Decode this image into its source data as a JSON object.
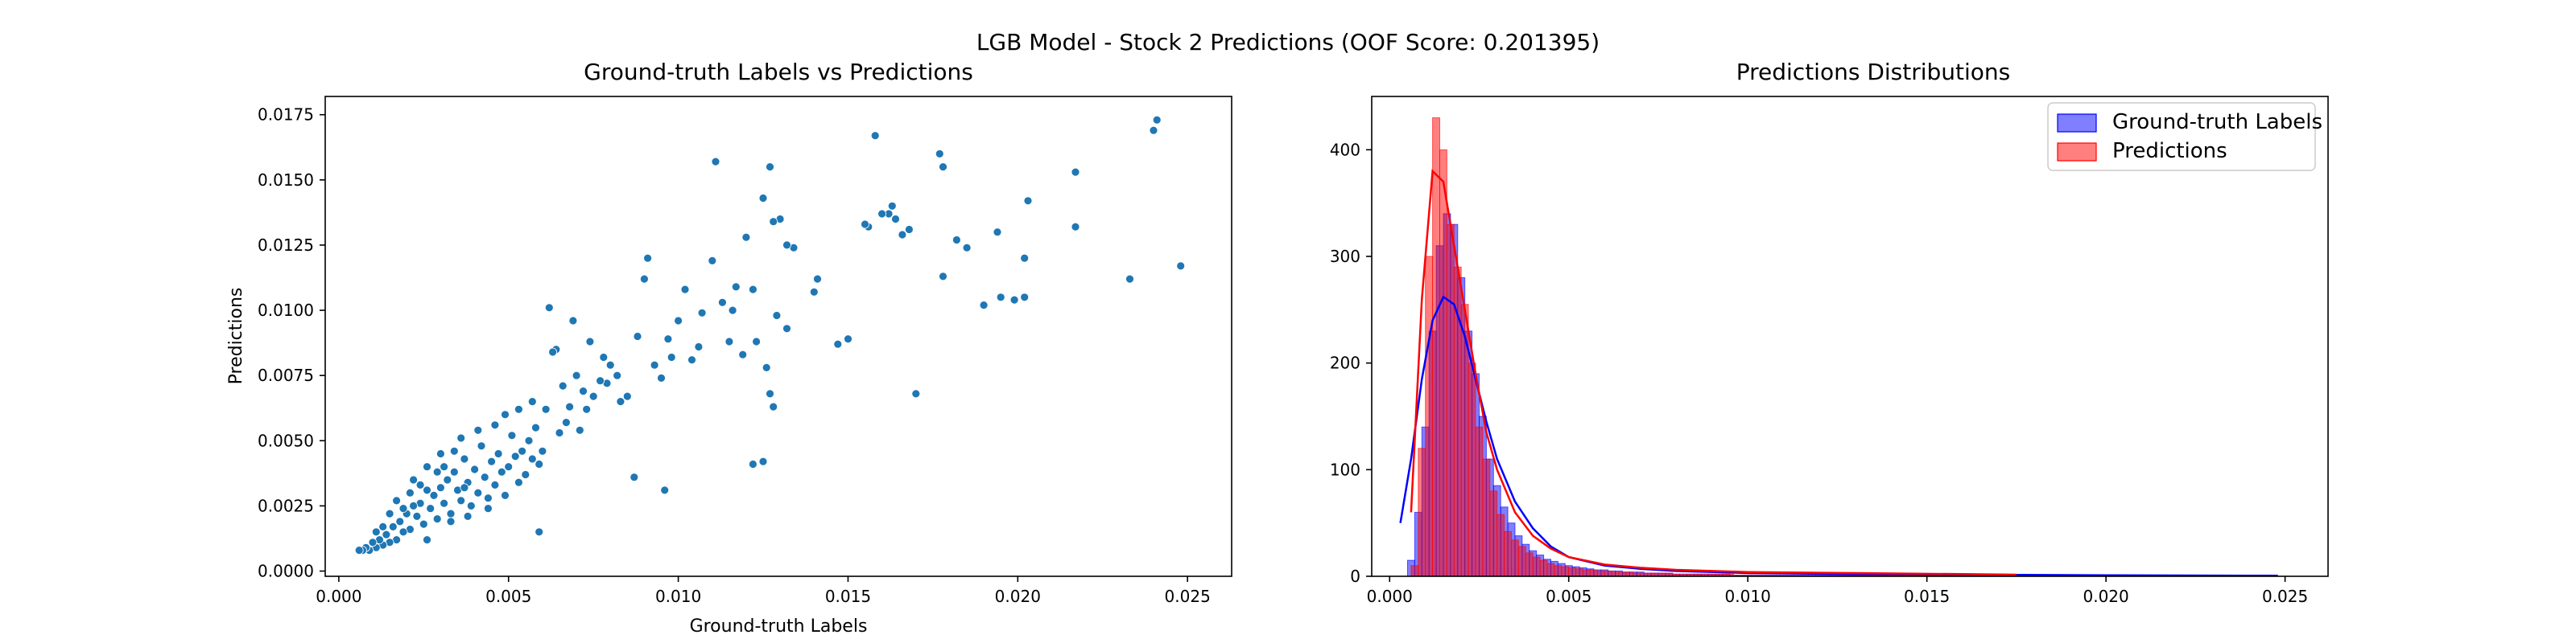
{
  "figure": {
    "suptitle": "LGB Model - Stock 2 Predictions (OOF Score: 0.201395)"
  },
  "chart_data": [
    {
      "type": "scatter",
      "title": "Ground-truth Labels vs Predictions",
      "xlabel": "Ground-truth Labels",
      "ylabel": "Predictions",
      "xlim": [
        -0.0004,
        0.0263
      ],
      "ylim": [
        -0.0002,
        0.0182
      ],
      "xticks": [
        0.0,
        0.005,
        0.01,
        0.015,
        0.02,
        0.025
      ],
      "yticks": [
        0.0,
        0.0025,
        0.005,
        0.0075,
        0.01,
        0.0125,
        0.015,
        0.0175
      ],
      "xtick_labels": [
        "0.000",
        "0.005",
        "0.010",
        "0.015",
        "0.020",
        "0.025"
      ],
      "ytick_labels": [
        "0.0000",
        "0.0025",
        "0.0050",
        "0.0075",
        "0.0100",
        "0.0125",
        "0.0150",
        "0.0175"
      ],
      "grid": false,
      "color": "#1f77b4",
      "points": [
        [
          0.024,
          0.0169
        ],
        [
          0.0241,
          0.0173
        ],
        [
          0.0248,
          0.0117
        ],
        [
          0.0233,
          0.0112
        ],
        [
          0.0217,
          0.0153
        ],
        [
          0.0217,
          0.0132
        ],
        [
          0.0203,
          0.0142
        ],
        [
          0.0202,
          0.0105
        ],
        [
          0.0202,
          0.012
        ],
        [
          0.0199,
          0.0104
        ],
        [
          0.0195,
          0.0105
        ],
        [
          0.019,
          0.0102
        ],
        [
          0.0194,
          0.013
        ],
        [
          0.0185,
          0.0124
        ],
        [
          0.0182,
          0.0127
        ],
        [
          0.0178,
          0.0155
        ],
        [
          0.0177,
          0.016
        ],
        [
          0.0178,
          0.0113
        ],
        [
          0.017,
          0.0068
        ],
        [
          0.0168,
          0.0131
        ],
        [
          0.0166,
          0.0129
        ],
        [
          0.0164,
          0.0135
        ],
        [
          0.0163,
          0.014
        ],
        [
          0.0162,
          0.0137
        ],
        [
          0.016,
          0.0137
        ],
        [
          0.0158,
          0.0167
        ],
        [
          0.0156,
          0.0132
        ],
        [
          0.0155,
          0.0133
        ],
        [
          0.015,
          0.0089
        ],
        [
          0.0147,
          0.0087
        ],
        [
          0.0141,
          0.0112
        ],
        [
          0.014,
          0.0107
        ],
        [
          0.0134,
          0.0124
        ],
        [
          0.0132,
          0.0125
        ],
        [
          0.0132,
          0.0093
        ],
        [
          0.0129,
          0.0098
        ],
        [
          0.013,
          0.0135
        ],
        [
          0.0128,
          0.0134
        ],
        [
          0.0127,
          0.0155
        ],
        [
          0.0125,
          0.0143
        ],
        [
          0.0125,
          0.0042
        ],
        [
          0.0122,
          0.0041
        ],
        [
          0.0126,
          0.0078
        ],
        [
          0.0127,
          0.0068
        ],
        [
          0.0128,
          0.0063
        ],
        [
          0.0123,
          0.0088
        ],
        [
          0.0119,
          0.0083
        ],
        [
          0.012,
          0.0128
        ],
        [
          0.0122,
          0.0108
        ],
        [
          0.0117,
          0.0109
        ],
        [
          0.0116,
          0.01
        ],
        [
          0.0115,
          0.0088
        ],
        [
          0.0113,
          0.0103
        ],
        [
          0.0111,
          0.0157
        ],
        [
          0.011,
          0.0119
        ],
        [
          0.0107,
          0.0099
        ],
        [
          0.0106,
          0.0086
        ],
        [
          0.0104,
          0.0081
        ],
        [
          0.0102,
          0.0108
        ],
        [
          0.01,
          0.0096
        ],
        [
          0.0098,
          0.0082
        ],
        [
          0.0097,
          0.0089
        ],
        [
          0.0095,
          0.0074
        ],
        [
          0.0093,
          0.0079
        ],
        [
          0.0091,
          0.012
        ],
        [
          0.009,
          0.0112
        ],
        [
          0.0088,
          0.009
        ],
        [
          0.0087,
          0.0036
        ],
        [
          0.0096,
          0.0031
        ],
        [
          0.0085,
          0.0067
        ],
        [
          0.0083,
          0.0065
        ],
        [
          0.0082,
          0.0075
        ],
        [
          0.008,
          0.0079
        ],
        [
          0.0079,
          0.0072
        ],
        [
          0.0078,
          0.0082
        ],
        [
          0.0077,
          0.0073
        ],
        [
          0.0075,
          0.0067
        ],
        [
          0.0074,
          0.0088
        ],
        [
          0.0073,
          0.0062
        ],
        [
          0.0072,
          0.0069
        ],
        [
          0.0071,
          0.0054
        ],
        [
          0.007,
          0.0075
        ],
        [
          0.0069,
          0.0096
        ],
        [
          0.0068,
          0.0063
        ],
        [
          0.0067,
          0.0057
        ],
        [
          0.0066,
          0.0071
        ],
        [
          0.0065,
          0.0053
        ],
        [
          0.0064,
          0.0085
        ],
        [
          0.0063,
          0.0084
        ],
        [
          0.0062,
          0.0101
        ],
        [
          0.0061,
          0.0062
        ],
        [
          0.006,
          0.0046
        ],
        [
          0.0059,
          0.0041
        ],
        [
          0.0058,
          0.0055
        ],
        [
          0.0057,
          0.0043
        ],
        [
          0.0056,
          0.005
        ],
        [
          0.0055,
          0.0037
        ],
        [
          0.0054,
          0.0046
        ],
        [
          0.0053,
          0.0034
        ],
        [
          0.0052,
          0.0044
        ],
        [
          0.0051,
          0.0052
        ],
        [
          0.005,
          0.004
        ],
        [
          0.0049,
          0.0029
        ],
        [
          0.0048,
          0.0038
        ],
        [
          0.0047,
          0.0045
        ],
        [
          0.0046,
          0.0033
        ],
        [
          0.0045,
          0.0042
        ],
        [
          0.0044,
          0.0028
        ],
        [
          0.0043,
          0.0036
        ],
        [
          0.0042,
          0.0048
        ],
        [
          0.0041,
          0.003
        ],
        [
          0.004,
          0.0039
        ],
        [
          0.0039,
          0.0025
        ],
        [
          0.0038,
          0.0034
        ],
        [
          0.0037,
          0.0043
        ],
        [
          0.0036,
          0.0027
        ],
        [
          0.0035,
          0.0031
        ],
        [
          0.0034,
          0.0038
        ],
        [
          0.0033,
          0.0022
        ],
        [
          0.0032,
          0.0035
        ],
        [
          0.0031,
          0.0026
        ],
        [
          0.003,
          0.0032
        ],
        [
          0.0029,
          0.002
        ],
        [
          0.0028,
          0.0029
        ],
        [
          0.0027,
          0.0024
        ],
        [
          0.0026,
          0.0031
        ],
        [
          0.0025,
          0.0018
        ],
        [
          0.0024,
          0.0026
        ],
        [
          0.0023,
          0.0021
        ],
        [
          0.0022,
          0.0025
        ],
        [
          0.0021,
          0.0016
        ],
        [
          0.002,
          0.0022
        ],
        [
          0.0019,
          0.0015
        ],
        [
          0.0018,
          0.0019
        ],
        [
          0.0017,
          0.0012
        ],
        [
          0.0016,
          0.0017
        ],
        [
          0.0015,
          0.0011
        ],
        [
          0.0014,
          0.0014
        ],
        [
          0.0013,
          0.001
        ],
        [
          0.0012,
          0.0012
        ],
        [
          0.0011,
          0.0009
        ],
        [
          0.001,
          0.0011
        ],
        [
          0.0009,
          0.0008
        ],
        [
          0.0008,
          0.0009
        ],
        [
          0.0007,
          0.0008
        ],
        [
          0.0006,
          0.0008
        ],
        [
          0.0059,
          0.0015
        ],
        [
          0.0036,
          0.0051
        ],
        [
          0.0041,
          0.0054
        ],
        [
          0.003,
          0.0045
        ],
        [
          0.0026,
          0.004
        ],
        [
          0.0022,
          0.0035
        ],
        [
          0.0033,
          0.0019
        ],
        [
          0.0044,
          0.0024
        ],
        [
          0.0038,
          0.0021
        ],
        [
          0.0049,
          0.006
        ],
        [
          0.0053,
          0.0062
        ],
        [
          0.0057,
          0.0065
        ],
        [
          0.0046,
          0.0056
        ],
        [
          0.0026,
          0.0012
        ],
        [
          0.0019,
          0.0024
        ],
        [
          0.0015,
          0.0022
        ],
        [
          0.0017,
          0.0027
        ],
        [
          0.0024,
          0.0033
        ],
        [
          0.0031,
          0.004
        ],
        [
          0.0034,
          0.0046
        ],
        [
          0.0029,
          0.0038
        ],
        [
          0.0037,
          0.0032
        ],
        [
          0.0021,
          0.003
        ],
        [
          0.0013,
          0.0017
        ],
        [
          0.0011,
          0.0015
        ]
      ]
    },
    {
      "type": "histogram",
      "title": "Predictions Distributions",
      "xlabel": "",
      "ylabel": "",
      "xlim": [
        -0.0005,
        0.0262
      ],
      "ylim": [
        0,
        450
      ],
      "xticks": [
        0.0,
        0.005,
        0.01,
        0.015,
        0.02,
        0.025
      ],
      "yticks": [
        0,
        100,
        200,
        300,
        400
      ],
      "xtick_labels": [
        "0.000",
        "0.005",
        "0.010",
        "0.015",
        "0.020",
        "0.025"
      ],
      "ytick_labels": [
        "0",
        "100",
        "200",
        "300",
        "400"
      ],
      "grid": false,
      "legend_position": "top-right",
      "series": [
        {
          "name": "Ground-truth Labels",
          "color": "#0000ff",
          "bin_start": 0.0005,
          "bin_width": 0.0002,
          "counts": [
            15,
            60,
            140,
            230,
            310,
            340,
            330,
            280,
            230,
            190,
            150,
            110,
            85,
            65,
            50,
            38,
            30,
            24,
            20,
            16,
            14,
            12,
            10,
            9,
            8,
            7,
            6,
            6,
            5,
            5,
            4,
            4,
            4,
            3,
            3,
            3,
            3,
            2,
            2,
            2,
            2,
            2,
            2,
            2,
            2,
            1,
            1,
            1,
            1,
            1,
            1,
            1,
            1,
            1,
            1,
            1,
            1,
            1,
            1,
            1,
            1,
            1,
            1,
            1,
            1,
            1,
            1,
            1,
            1,
            1,
            1,
            1,
            1,
            1,
            1,
            1,
            0,
            0,
            0,
            0,
            1,
            0,
            0,
            0,
            0,
            0,
            0,
            0,
            1,
            0,
            0,
            0,
            0,
            0,
            0,
            0,
            0,
            0,
            0,
            0,
            0,
            0,
            0,
            0,
            0,
            0,
            0,
            0,
            0,
            0,
            0,
            1
          ],
          "kde": [
            [
              0.0003,
              50
            ],
            [
              0.0006,
              110
            ],
            [
              0.0009,
              185
            ],
            [
              0.0012,
              240
            ],
            [
              0.0015,
              262
            ],
            [
              0.0018,
              255
            ],
            [
              0.0021,
              225
            ],
            [
              0.0024,
              185
            ],
            [
              0.0027,
              145
            ],
            [
              0.003,
              110
            ],
            [
              0.0035,
              70
            ],
            [
              0.004,
              45
            ],
            [
              0.0045,
              28
            ],
            [
              0.005,
              18
            ],
            [
              0.006,
              10
            ],
            [
              0.007,
              7
            ],
            [
              0.008,
              5
            ],
            [
              0.01,
              3
            ],
            [
              0.013,
              2
            ],
            [
              0.016,
              1.5
            ],
            [
              0.02,
              1
            ],
            [
              0.0248,
              0.5
            ]
          ]
        },
        {
          "name": "Predictions",
          "color": "#ff0000",
          "bin_start": 0.0006,
          "bin_width": 0.0002,
          "counts": [
            10,
            120,
            300,
            430,
            400,
            330,
            290,
            255,
            200,
            140,
            110,
            80,
            58,
            42,
            34,
            28,
            22,
            18,
            15,
            12,
            10,
            9,
            8,
            7,
            6,
            6,
            5,
            5,
            4,
            4,
            4,
            3,
            3,
            3,
            3,
            3,
            2,
            2,
            2,
            2,
            2,
            2,
            2,
            2,
            2,
            1,
            1,
            1,
            1,
            1,
            1,
            1,
            1,
            1,
            1,
            1,
            1,
            1,
            1,
            1,
            1,
            1,
            1,
            1,
            1,
            1,
            1,
            1,
            1,
            1,
            1,
            1,
            1,
            1,
            1,
            1,
            1,
            1,
            1,
            1,
            1
          ],
          "kde": [
            [
              0.0006,
              60
            ],
            [
              0.0009,
              260
            ],
            [
              0.0012,
              380
            ],
            [
              0.0015,
              370
            ],
            [
              0.0018,
              310
            ],
            [
              0.0021,
              250
            ],
            [
              0.0024,
              190
            ],
            [
              0.0027,
              135
            ],
            [
              0.003,
              100
            ],
            [
              0.0035,
              60
            ],
            [
              0.004,
              38
            ],
            [
              0.0045,
              26
            ],
            [
              0.005,
              18
            ],
            [
              0.006,
              11
            ],
            [
              0.007,
              8
            ],
            [
              0.008,
              6
            ],
            [
              0.01,
              4
            ],
            [
              0.013,
              3
            ],
            [
              0.016,
              2
            ],
            [
              0.0175,
              1.5
            ]
          ]
        }
      ]
    }
  ]
}
